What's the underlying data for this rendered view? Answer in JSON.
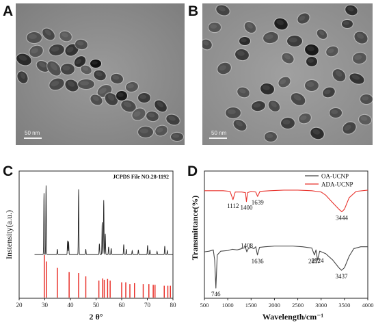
{
  "panels": {
    "a": {
      "label": "A",
      "scale_bar": "50 nm"
    },
    "b": {
      "label": "B",
      "scale_bar": "50 nm"
    },
    "c": {
      "label": "C"
    },
    "d": {
      "label": "D"
    }
  },
  "colors": {
    "oa": "#444444",
    "ada": "#e8302a",
    "reference": "#e8302a",
    "xrd": "#222222"
  },
  "chart_data": [
    {
      "type": "line",
      "panel": "C",
      "xlabel": "2 θ°",
      "ylabel": "Instensity(a.u.)",
      "xlim": [
        20,
        80
      ],
      "x_ticks": [
        20,
        30,
        40,
        50,
        60,
        70,
        80
      ],
      "annotation": "JCPDS File NO.28-1192",
      "peaks": [
        {
          "x": 29.7,
          "h": 0.8
        },
        {
          "x": 30.5,
          "h": 0.9
        },
        {
          "x": 34.9,
          "h": 0.07
        },
        {
          "x": 38.9,
          "h": 0.18
        },
        {
          "x": 39.3,
          "h": 0.17
        },
        {
          "x": 43.2,
          "h": 0.85
        },
        {
          "x": 46.0,
          "h": 0.07
        },
        {
          "x": 51.3,
          "h": 0.14
        },
        {
          "x": 52.4,
          "h": 0.42
        },
        {
          "x": 53.0,
          "h": 0.71
        },
        {
          "x": 53.6,
          "h": 0.27
        },
        {
          "x": 54.9,
          "h": 0.1
        },
        {
          "x": 55.9,
          "h": 0.08
        },
        {
          "x": 60.8,
          "h": 0.13
        },
        {
          "x": 61.8,
          "h": 0.07
        },
        {
          "x": 64.1,
          "h": 0.05
        },
        {
          "x": 66.5,
          "h": 0.06
        },
        {
          "x": 70.1,
          "h": 0.12
        },
        {
          "x": 71.0,
          "h": 0.06
        },
        {
          "x": 73.8,
          "h": 0.04
        },
        {
          "x": 76.8,
          "h": 0.11
        },
        {
          "x": 77.8,
          "h": 0.05
        }
      ],
      "reference_lines": [
        {
          "x": 29.8,
          "h": 1.0
        },
        {
          "x": 30.6,
          "h": 0.85
        },
        {
          "x": 34.9,
          "h": 0.7
        },
        {
          "x": 39.5,
          "h": 0.6
        },
        {
          "x": 43.2,
          "h": 0.58
        },
        {
          "x": 46.0,
          "h": 0.5
        },
        {
          "x": 51.1,
          "h": 0.4
        },
        {
          "x": 52.6,
          "h": 0.45
        },
        {
          "x": 53.2,
          "h": 0.42
        },
        {
          "x": 54.5,
          "h": 0.44
        },
        {
          "x": 55.5,
          "h": 0.4
        },
        {
          "x": 60.0,
          "h": 0.36
        },
        {
          "x": 61.6,
          "h": 0.36
        },
        {
          "x": 63.2,
          "h": 0.32
        },
        {
          "x": 65.0,
          "h": 0.34
        },
        {
          "x": 68.4,
          "h": 0.32
        },
        {
          "x": 70.6,
          "h": 0.32
        },
        {
          "x": 72.3,
          "h": 0.3
        },
        {
          "x": 73.0,
          "h": 0.3
        },
        {
          "x": 76.6,
          "h": 0.28
        },
        {
          "x": 78.0,
          "h": 0.28
        },
        {
          "x": 79.0,
          "h": 0.28
        }
      ]
    },
    {
      "type": "line",
      "panel": "D",
      "xlabel": "Wavelength/cm⁻¹",
      "ylabel": "Transmittance(%)",
      "xlim": [
        500,
        4000
      ],
      "x_ticks": [
        500,
        1000,
        1500,
        2000,
        2500,
        3000,
        3500,
        4000
      ],
      "legend_position": "top-right",
      "series": [
        {
          "name": "OA-UCNP",
          "color": "#444444",
          "points": [
            [
              500,
              0.365
            ],
            [
              600,
              0.37
            ],
            [
              690,
              0.38
            ],
            [
              720,
              0.3
            ],
            [
              746,
              0.08
            ],
            [
              775,
              0.34
            ],
            [
              850,
              0.37
            ],
            [
              1000,
              0.375
            ],
            [
              1100,
              0.385
            ],
            [
              1200,
              0.38
            ],
            [
              1300,
              0.39
            ],
            [
              1380,
              0.4
            ],
            [
              1408,
              0.365
            ],
            [
              1440,
              0.39
            ],
            [
              1500,
              0.4
            ],
            [
              1560,
              0.39
            ],
            [
              1600,
              0.405
            ],
            [
              1636,
              0.34
            ],
            [
              1680,
              0.4
            ],
            [
              1800,
              0.405
            ],
            [
              2000,
              0.41
            ],
            [
              2200,
              0.41
            ],
            [
              2400,
              0.41
            ],
            [
              2600,
              0.405
            ],
            [
              2800,
              0.395
            ],
            [
              2857,
              0.34
            ],
            [
              2890,
              0.38
            ],
            [
              2924,
              0.3
            ],
            [
              2970,
              0.37
            ],
            [
              3100,
              0.35
            ],
            [
              3250,
              0.3
            ],
            [
              3380,
              0.24
            ],
            [
              3437,
              0.22
            ],
            [
              3500,
              0.24
            ],
            [
              3600,
              0.33
            ],
            [
              3700,
              0.39
            ],
            [
              3850,
              0.405
            ],
            [
              4000,
              0.405
            ]
          ],
          "labels": [
            {
              "x": 746,
              "text": "746"
            },
            {
              "x": 1408,
              "text": "1408"
            },
            {
              "x": 1636,
              "text": "1636"
            },
            {
              "x": 2857,
              "text": "2857"
            },
            {
              "x": 2924,
              "text": "2924"
            },
            {
              "x": 3437,
              "text": "3437"
            }
          ]
        },
        {
          "name": "ADA-UCNP",
          "color": "#e8302a",
          "points": [
            [
              500,
              0.845
            ],
            [
              700,
              0.845
            ],
            [
              900,
              0.845
            ],
            [
              1050,
              0.84
            ],
            [
              1112,
              0.775
            ],
            [
              1160,
              0.835
            ],
            [
              1300,
              0.835
            ],
            [
              1380,
              0.83
            ],
            [
              1400,
              0.76
            ],
            [
              1425,
              0.83
            ],
            [
              1500,
              0.84
            ],
            [
              1600,
              0.835
            ],
            [
              1639,
              0.8
            ],
            [
              1690,
              0.84
            ],
            [
              1900,
              0.845
            ],
            [
              2200,
              0.85
            ],
            [
              2500,
              0.85
            ],
            [
              2800,
              0.845
            ],
            [
              2900,
              0.84
            ],
            [
              3000,
              0.835
            ],
            [
              3100,
              0.81
            ],
            [
              3250,
              0.75
            ],
            [
              3380,
              0.7
            ],
            [
              3444,
              0.68
            ],
            [
              3500,
              0.7
            ],
            [
              3600,
              0.79
            ],
            [
              3750,
              0.84
            ],
            [
              4000,
              0.85
            ]
          ],
          "labels": [
            {
              "x": 1112,
              "text": "1112"
            },
            {
              "x": 1400,
              "text": "1400"
            },
            {
              "x": 1639,
              "text": "1639"
            },
            {
              "x": 3444,
              "text": "3444"
            }
          ]
        }
      ]
    }
  ]
}
